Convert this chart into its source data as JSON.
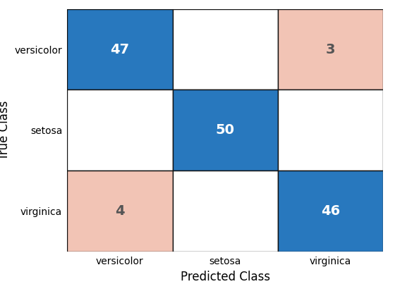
{
  "matrix": [
    [
      47,
      0,
      3
    ],
    [
      0,
      50,
      0
    ],
    [
      4,
      0,
      46
    ]
  ],
  "classes": [
    "versicolor",
    "setosa",
    "virginica"
  ],
  "xlabel": "Predicted Class",
  "ylabel": "True Class",
  "blue_color": "#2878BE",
  "pink_color": "#F2C4B5",
  "white_color": "#FFFFFF",
  "text_color_white": "#FFFFFF",
  "text_color_dark": "#555555",
  "font_size_numbers": 14,
  "font_size_labels": 10,
  "font_size_axis_labels": 12,
  "figsize": [
    5.6,
    4.2
  ],
  "dpi": 100,
  "border_color": "#111111",
  "border_linewidth": 1.0
}
